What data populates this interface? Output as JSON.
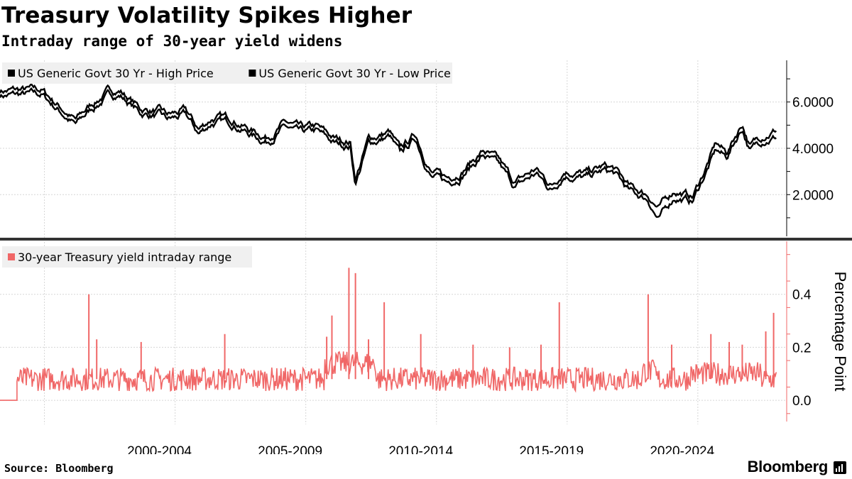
{
  "header": {
    "title": "Treasury Volatility Spikes Higher",
    "subtitle": "Intraday range of 30-year yield widens"
  },
  "footer": {
    "source": "Source: Bloomberg",
    "brand": "Bloomberg"
  },
  "colors": {
    "price_series": "#000000",
    "range_series": "#f06767",
    "legend_bg": "#f0f0f0",
    "grid": "#d6d6d6",
    "divider": "#333333"
  },
  "chart_data": [
    {
      "type": "line",
      "title": "",
      "ylabel": "",
      "ylim": [
        0.2,
        7.8
      ],
      "yticks": [
        2,
        4,
        6
      ],
      "ytick_labels": [
        "2.0000",
        "4.0000",
        "6.0000"
      ],
      "axis_side": "right",
      "grid": true,
      "legend_position": "top-left",
      "legend": [
        "US Generic Govt 30 Yr - High Price",
        "US Generic Govt 30 Yr - Low Price"
      ],
      "x": [
        1997.0,
        1998.3,
        1998.9,
        1999.6,
        2000.0,
        2000.8,
        2001.5,
        2001.8,
        2002.5,
        2003.0,
        2003.5,
        2004.3,
        2005.0,
        2005.6,
        2006.3,
        2006.9,
        2007.5,
        2008.2,
        2008.8,
        2009.0,
        2009.5,
        2010.3,
        2010.7,
        2011.3,
        2011.9,
        2012.5,
        2013.0,
        2013.9,
        2014.5,
        2015.1,
        2015.9,
        2016.5,
        2017.0,
        2017.8,
        2018.5,
        2018.9,
        2019.5,
        2020.2,
        2020.6,
        2021.2,
        2021.9,
        2022.3,
        2022.8,
        2023.2,
        2023.8,
        2024.1,
        2024.6,
        2025.1
      ],
      "series": [
        {
          "name": "US Generic Govt 30 Yr - High Price",
          "values": [
            6.5,
            5.2,
            5.9,
            6.5,
            6.5,
            5.7,
            5.6,
            5.4,
            5.6,
            4.8,
            5.3,
            5.3,
            4.8,
            4.5,
            5.1,
            4.8,
            4.9,
            4.4,
            4.3,
            2.7,
            4.4,
            4.7,
            3.9,
            4.6,
            3.0,
            2.7,
            3.0,
            3.9,
            3.4,
            2.5,
            3.1,
            2.4,
            3.1,
            2.9,
            3.2,
            3.1,
            2.3,
            2.0,
            1.4,
            2.2,
            1.9,
            2.9,
            4.2,
            3.8,
            5.1,
            4.1,
            4.6,
            4.8
          ]
        },
        {
          "name": "US Generic Govt 30 Yr - Low Price",
          "values": [
            6.3,
            5.0,
            5.7,
            6.3,
            6.3,
            5.5,
            5.4,
            5.2,
            5.4,
            4.6,
            5.1,
            5.1,
            4.6,
            4.3,
            4.9,
            4.6,
            4.7,
            4.2,
            4.1,
            2.5,
            4.2,
            4.5,
            3.7,
            4.4,
            2.8,
            2.5,
            2.8,
            3.7,
            3.2,
            2.3,
            2.9,
            2.2,
            2.9,
            2.7,
            3.0,
            2.9,
            2.1,
            1.8,
            0.9,
            1.9,
            1.7,
            2.7,
            3.9,
            3.6,
            4.9,
            3.9,
            4.4,
            4.5
          ]
        }
      ]
    },
    {
      "type": "line",
      "title": "",
      "ylabel": "Percentage Point",
      "ylim": [
        -0.08,
        0.6
      ],
      "yticks": [
        0.0,
        0.2,
        0.4
      ],
      "ytick_labels": [
        "0.0",
        "0.2",
        "0.4"
      ],
      "axis_side": "right",
      "grid": true,
      "legend_position": "top-left",
      "legend": [
        "30-year Treasury yield intraday range"
      ],
      "series": [
        {
          "name": "30-year Treasury yield intraday range",
          "baseline": 0.08,
          "spikes": [
            {
              "x": 1998.8,
              "value": 0.4
            },
            {
              "x": 1999.1,
              "value": 0.23
            },
            {
              "x": 2000.8,
              "value": 0.22
            },
            {
              "x": 2004.0,
              "value": 0.25
            },
            {
              "x": 2007.9,
              "value": 0.24
            },
            {
              "x": 2008.1,
              "value": 0.32
            },
            {
              "x": 2008.75,
              "value": 0.5
            },
            {
              "x": 2009.0,
              "value": 0.48
            },
            {
              "x": 2009.5,
              "value": 0.23
            },
            {
              "x": 2010.1,
              "value": 0.37
            },
            {
              "x": 2011.5,
              "value": 0.25
            },
            {
              "x": 2013.5,
              "value": 0.21
            },
            {
              "x": 2014.9,
              "value": 0.2
            },
            {
              "x": 2016.1,
              "value": 0.21
            },
            {
              "x": 2016.8,
              "value": 0.37
            },
            {
              "x": 2020.2,
              "value": 0.4
            },
            {
              "x": 2021.1,
              "value": 0.21
            },
            {
              "x": 2022.6,
              "value": 0.25
            },
            {
              "x": 2023.3,
              "value": 0.22
            },
            {
              "x": 2023.8,
              "value": 0.21
            },
            {
              "x": 2024.7,
              "value": 0.26
            },
            {
              "x": 2025.0,
              "value": 0.33
            }
          ]
        }
      ]
    },
    {
      "type": "axis",
      "xlim": [
        1995.4,
        2025.5
      ],
      "x_labels": [
        {
          "label": "2000-2004",
          "x": 1999.1
        },
        {
          "label": "2005-2009",
          "x": 2004.1
        },
        {
          "label": "2010-2014",
          "x": 2009.1
        },
        {
          "label": "2015-2019",
          "x": 2014.1
        },
        {
          "label": "2020-2024",
          "x": 2019.1
        }
      ],
      "gridlines_x": [
        1997.1,
        2002.1,
        2007.1,
        2012.1,
        2017.1,
        2022.1
      ]
    }
  ]
}
